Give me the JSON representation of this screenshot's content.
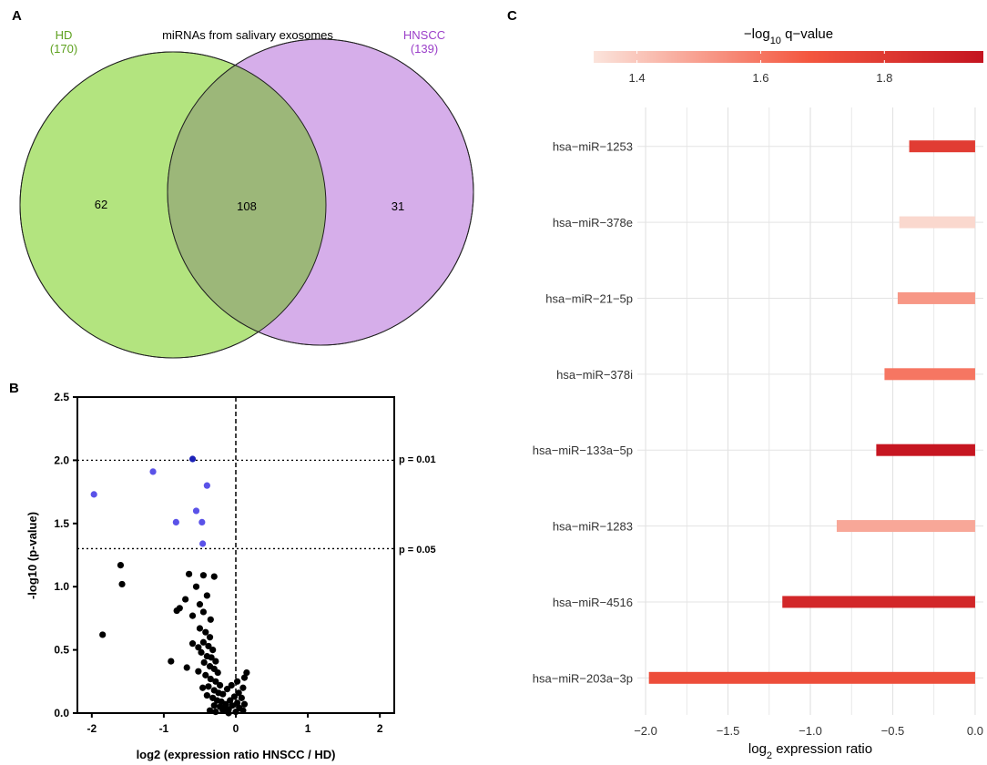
{
  "colors": {
    "hd_fill": "#b3e47f",
    "hnscc_fill": "#d6aeea",
    "overlap_fill": "#9cb779",
    "hd_text": "#5ea11f",
    "hnscc_text": "#9b3fc9",
    "sig_point": "#5a52e8",
    "sig_point_dark": "#1c22b8",
    "nonsig_point": "#000000",
    "grid": "#e3e3e3",
    "scale_low": "#fbe4dc",
    "scale_mid": "#f4573f",
    "scale_high": "#c41420"
  },
  "panels": {
    "a": "A",
    "b": "B",
    "c": "C"
  },
  "chart_data": [
    {
      "type": "venn",
      "title": "miRNAs from salivary exosomes",
      "sets": [
        {
          "name": "HD",
          "size_label": "(170)",
          "size": 170,
          "unique": 62
        },
        {
          "name": "HNSCC",
          "size_label": "(139)",
          "size": 139,
          "unique": 31
        }
      ],
      "overlap": 108,
      "labels": {
        "hd_unique": "62",
        "overlap": "108",
        "hnscc_unique": "31"
      }
    },
    {
      "type": "scatter",
      "title": "",
      "xlabel": "log2 (expression ratio HNSCC / HD)",
      "ylabel": "-log10 (p-value)",
      "xlim": [
        -2.2,
        2.2
      ],
      "ylim": [
        0,
        2.5
      ],
      "xticks": [
        -2,
        -1,
        0,
        1,
        2
      ],
      "xtick_labels": [
        "-2",
        "-1",
        "0",
        "1",
        "2"
      ],
      "yticks": [
        0,
        0.5,
        1,
        1.5,
        2,
        2.5
      ],
      "ytick_labels": [
        "0.0",
        "0.5",
        "1.0",
        "1.5",
        "2.0",
        "2.5"
      ],
      "thresholds": [
        {
          "y": 2.0,
          "label": "p = 0.01"
        },
        {
          "y": 1.301,
          "label": "p = 0.05"
        }
      ],
      "vline": 0,
      "significant": [
        {
          "x": -0.6,
          "y": 2.01
        },
        {
          "x": -1.15,
          "y": 1.91
        },
        {
          "x": -0.4,
          "y": 1.8
        },
        {
          "x": -1.97,
          "y": 1.73
        },
        {
          "x": -0.55,
          "y": 1.6
        },
        {
          "x": -0.83,
          "y": 1.51
        },
        {
          "x": -0.47,
          "y": 1.51
        },
        {
          "x": -0.46,
          "y": 1.34
        }
      ],
      "nonsignificant": [
        {
          "x": -1.6,
          "y": 1.17
        },
        {
          "x": -1.58,
          "y": 1.02
        },
        {
          "x": -1.85,
          "y": 0.62
        },
        {
          "x": -0.65,
          "y": 1.1
        },
        {
          "x": -0.45,
          "y": 1.09
        },
        {
          "x": -0.3,
          "y": 1.08
        },
        {
          "x": -0.55,
          "y": 1.0
        },
        {
          "x": -0.7,
          "y": 0.9
        },
        {
          "x": -0.4,
          "y": 0.93
        },
        {
          "x": -0.5,
          "y": 0.86
        },
        {
          "x": -0.78,
          "y": 0.83
        },
        {
          "x": -0.82,
          "y": 0.81
        },
        {
          "x": -0.6,
          "y": 0.77
        },
        {
          "x": -0.45,
          "y": 0.8
        },
        {
          "x": -0.35,
          "y": 0.74
        },
        {
          "x": -0.5,
          "y": 0.67
        },
        {
          "x": -0.42,
          "y": 0.64
        },
        {
          "x": -0.36,
          "y": 0.6
        },
        {
          "x": -0.45,
          "y": 0.56
        },
        {
          "x": -0.38,
          "y": 0.53
        },
        {
          "x": -0.32,
          "y": 0.5
        },
        {
          "x": -0.48,
          "y": 0.48
        },
        {
          "x": -0.4,
          "y": 0.45
        },
        {
          "x": -0.34,
          "y": 0.44
        },
        {
          "x": -0.28,
          "y": 0.41
        },
        {
          "x": -0.44,
          "y": 0.4
        },
        {
          "x": -0.36,
          "y": 0.37
        },
        {
          "x": -0.3,
          "y": 0.35
        },
        {
          "x": -0.25,
          "y": 0.32
        },
        {
          "x": -0.42,
          "y": 0.3
        },
        {
          "x": -0.35,
          "y": 0.27
        },
        {
          "x": -0.28,
          "y": 0.25
        },
        {
          "x": -0.22,
          "y": 0.22
        },
        {
          "x": -0.38,
          "y": 0.21
        },
        {
          "x": -0.3,
          "y": 0.18
        },
        {
          "x": -0.24,
          "y": 0.16
        },
        {
          "x": -0.18,
          "y": 0.15
        },
        {
          "x": -0.32,
          "y": 0.12
        },
        {
          "x": -0.26,
          "y": 0.1
        },
        {
          "x": -0.2,
          "y": 0.09
        },
        {
          "x": -0.14,
          "y": 0.07
        },
        {
          "x": -0.3,
          "y": 0.06
        },
        {
          "x": -0.22,
          "y": 0.05
        },
        {
          "x": -0.16,
          "y": 0.04
        },
        {
          "x": -0.1,
          "y": 0.03
        },
        {
          "x": -0.05,
          "y": 0.06
        },
        {
          "x": 0.02,
          "y": 0.08
        },
        {
          "x": 0.05,
          "y": 0.04
        },
        {
          "x": 0.08,
          "y": 0.12
        },
        {
          "x": 0.1,
          "y": 0.2
        },
        {
          "x": 0.12,
          "y": 0.28
        },
        {
          "x": 0.15,
          "y": 0.32
        },
        {
          "x": 0.04,
          "y": 0.16
        },
        {
          "x": -0.02,
          "y": 0.13
        },
        {
          "x": -0.08,
          "y": 0.1
        },
        {
          "x": -0.12,
          "y": 0.19
        },
        {
          "x": -0.52,
          "y": 0.52
        },
        {
          "x": -0.9,
          "y": 0.41
        },
        {
          "x": -0.68,
          "y": 0.36
        },
        {
          "x": -0.6,
          "y": 0.55
        },
        {
          "x": -0.52,
          "y": 0.33
        },
        {
          "x": -0.46,
          "y": 0.2
        },
        {
          "x": -0.4,
          "y": 0.14
        },
        {
          "x": -0.36,
          "y": 0.02
        },
        {
          "x": -0.28,
          "y": 0.01
        },
        {
          "x": -0.18,
          "y": 0.02
        },
        {
          "x": -0.1,
          "y": 0.0
        },
        {
          "x": 0.0,
          "y": 0.01
        },
        {
          "x": 0.1,
          "y": 0.02
        },
        {
          "x": 0.12,
          "y": 0.07
        },
        {
          "x": -0.06,
          "y": 0.22
        },
        {
          "x": 0.02,
          "y": 0.25
        }
      ]
    },
    {
      "type": "bar",
      "orientation": "horizontal",
      "xlabel_main": "log",
      "xlabel_sub": "2",
      "xlabel_rest": " expression ratio",
      "xlim": [
        -2.05,
        0.05
      ],
      "xticks": [
        -2.0,
        -1.5,
        -1.0,
        -0.5,
        0.0
      ],
      "xtick_labels": [
        "−2.0",
        "−1.5",
        "−1.0",
        "−0.5",
        "0.0"
      ],
      "categories": [
        "hsa−miR−1253",
        "hsa−miR−378e",
        "hsa−miR−21−5p",
        "hsa−miR−378i",
        "hsa−miR−133a−5p",
        "hsa−miR−1283",
        "hsa−miR−4516",
        "hsa−miR−203a−3p"
      ],
      "values": [
        -0.4,
        -0.46,
        -0.47,
        -0.55,
        -0.6,
        -0.84,
        -1.17,
        -1.98
      ],
      "qvalues": [
        1.79,
        1.36,
        1.52,
        1.6,
        1.95,
        1.48,
        1.88,
        1.72
      ],
      "colorbar": {
        "title_main": "−log",
        "title_sub": "10",
        "title_rest": " q−value",
        "range": [
          1.33,
          1.96
        ],
        "ticks": [
          1.4,
          1.6,
          1.8
        ],
        "tick_labels": [
          "1.4",
          "1.6",
          "1.8"
        ]
      }
    }
  ]
}
